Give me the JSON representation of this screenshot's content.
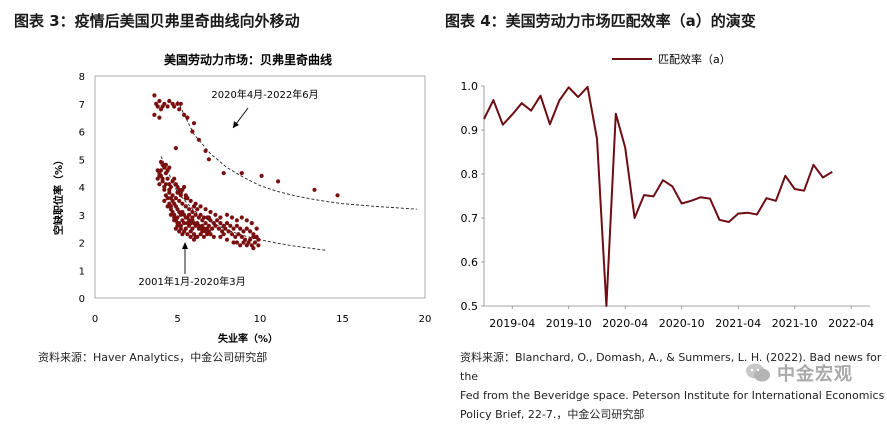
{
  "left": {
    "heading": "图表 3：疫情后美国贝弗里奇曲线向外移动",
    "source": "资料来源：Haver Analytics，中金公司研究部"
  },
  "right": {
    "heading": "图表 4：美国劳动力市场匹配效率（a）的演变",
    "source_lines": [
      "资料来源：Blanchard, O., Domash, A., & Summers, L. H. (2022). Bad news for the",
      "Fed from the Beveridge space. Peterson Institute for International Economics",
      "Policy Brief, 22-7.，中金公司研究部"
    ]
  },
  "watermark": "中金宏观",
  "chart_data": [
    {
      "type": "scatter",
      "title": "美国劳动力市场：贝弗里奇曲线",
      "xlabel": "失业率（%）",
      "ylabel": "空缺职位率（%）",
      "xlim": [
        0,
        20
      ],
      "ylim": [
        0,
        8
      ],
      "xticks": [
        0,
        5,
        10,
        15,
        20
      ],
      "yticks": [
        0,
        1,
        2,
        3,
        4,
        5,
        6,
        7,
        8
      ],
      "grid": false,
      "annotations": [
        "2020年4月-2022年6月",
        "2001年1月-2020年3月"
      ],
      "series": [
        {
          "name": "2001年1月-2020年3月",
          "color": "#7a0f10",
          "points": [
            [
              3.8,
              4.3
            ],
            [
              3.9,
              4.5
            ],
            [
              4.0,
              4.6
            ],
            [
              4.1,
              4.8
            ],
            [
              4.0,
              4.4
            ],
            [
              4.2,
              4.7
            ],
            [
              4.3,
              4.5
            ],
            [
              4.1,
              4.2
            ],
            [
              3.9,
              4.1
            ],
            [
              4.2,
              4.0
            ],
            [
              4.4,
              4.3
            ],
            [
              4.5,
              4.1
            ],
            [
              4.6,
              4.0
            ],
            [
              4.7,
              4.2
            ],
            [
              4.8,
              4.3
            ],
            [
              4.9,
              4.1
            ],
            [
              5.0,
              4.0
            ],
            [
              5.1,
              3.9
            ],
            [
              5.2,
              3.8
            ],
            [
              5.3,
              3.9
            ],
            [
              5.4,
              4.0
            ],
            [
              5.5,
              3.7
            ],
            [
              5.6,
              3.6
            ],
            [
              4.5,
              3.8
            ],
            [
              4.6,
              3.6
            ],
            [
              4.7,
              3.5
            ],
            [
              4.8,
              3.4
            ],
            [
              4.9,
              3.3
            ],
            [
              5.0,
              3.2
            ],
            [
              5.1,
              3.1
            ],
            [
              5.2,
              3.0
            ],
            [
              5.3,
              3.1
            ],
            [
              5.4,
              3.0
            ],
            [
              5.5,
              2.9
            ],
            [
              5.6,
              2.9
            ],
            [
              5.7,
              2.8
            ],
            [
              5.8,
              2.7
            ],
            [
              5.9,
              2.8
            ],
            [
              6.0,
              2.7
            ],
            [
              6.1,
              2.6
            ],
            [
              6.2,
              2.7
            ],
            [
              6.3,
              2.6
            ],
            [
              6.4,
              2.5
            ],
            [
              6.5,
              2.6
            ],
            [
              6.6,
              2.5
            ],
            [
              6.7,
              2.4
            ],
            [
              6.8,
              2.5
            ],
            [
              6.9,
              2.4
            ],
            [
              7.0,
              2.3
            ],
            [
              5.8,
              2.4
            ],
            [
              5.9,
              2.5
            ],
            [
              6.0,
              2.3
            ],
            [
              6.1,
              2.2
            ],
            [
              5.7,
              2.6
            ],
            [
              5.5,
              2.5
            ],
            [
              5.4,
              2.7
            ],
            [
              5.3,
              2.8
            ],
            [
              5.2,
              2.6
            ],
            [
              5.1,
              2.7
            ],
            [
              5.0,
              2.9
            ],
            [
              4.9,
              2.8
            ],
            [
              4.8,
              3.0
            ],
            [
              4.7,
              3.1
            ],
            [
              4.6,
              3.3
            ],
            [
              4.5,
              3.4
            ],
            [
              4.4,
              3.6
            ],
            [
              4.3,
              3.7
            ],
            [
              4.2,
              3.9
            ],
            [
              6.0,
              3.3
            ],
            [
              6.2,
              3.2
            ],
            [
              6.4,
              3.0
            ],
            [
              6.6,
              2.9
            ],
            [
              6.8,
              2.9
            ],
            [
              7.0,
              2.8
            ],
            [
              7.2,
              2.7
            ],
            [
              7.4,
              2.8
            ],
            [
              7.6,
              2.7
            ],
            [
              7.8,
              2.6
            ],
            [
              8.0,
              2.7
            ],
            [
              8.2,
              2.6
            ],
            [
              8.4,
              2.5
            ],
            [
              8.6,
              2.6
            ],
            [
              8.8,
              2.5
            ],
            [
              9.0,
              2.4
            ],
            [
              9.2,
              2.5
            ],
            [
              9.4,
              2.4
            ],
            [
              9.6,
              2.3
            ],
            [
              9.8,
              2.2
            ],
            [
              9.9,
              2.1
            ],
            [
              9.7,
              2.0
            ],
            [
              9.5,
              1.9
            ],
            [
              9.3,
              2.0
            ],
            [
              9.1,
              2.1
            ],
            [
              8.9,
              2.2
            ],
            [
              8.7,
              2.3
            ],
            [
              8.5,
              2.2
            ],
            [
              8.3,
              2.3
            ],
            [
              8.1,
              2.4
            ],
            [
              7.9,
              2.5
            ],
            [
              7.7,
              2.4
            ],
            [
              7.5,
              2.5
            ],
            [
              7.3,
              2.6
            ],
            [
              7.1,
              2.5
            ],
            [
              6.9,
              2.6
            ],
            [
              6.7,
              2.7
            ],
            [
              6.5,
              2.8
            ],
            [
              6.3,
              2.9
            ],
            [
              6.1,
              3.0
            ],
            [
              5.9,
              3.1
            ],
            [
              5.7,
              3.2
            ],
            [
              5.5,
              3.3
            ],
            [
              5.3,
              3.4
            ],
            [
              5.1,
              3.5
            ],
            [
              4.9,
              3.6
            ],
            [
              4.7,
              3.7
            ],
            [
              4.5,
              3.9
            ],
            [
              4.3,
              4.1
            ],
            [
              4.1,
              4.3
            ],
            [
              3.9,
              4.4
            ],
            [
              4.6,
              3.2
            ],
            [
              4.8,
              2.9
            ],
            [
              5.0,
              2.7
            ],
            [
              5.2,
              2.5
            ],
            [
              5.4,
              2.4
            ],
            [
              5.6,
              2.3
            ],
            [
              5.8,
              2.2
            ],
            [
              6.0,
              2.1
            ],
            [
              6.2,
              2.2
            ],
            [
              6.4,
              2.3
            ],
            [
              6.6,
              2.2
            ],
            [
              8.0,
              3.0
            ],
            [
              8.3,
              2.9
            ],
            [
              8.6,
              2.8
            ],
            [
              8.9,
              2.9
            ],
            [
              9.2,
              2.8
            ],
            [
              9.5,
              2.7
            ],
            [
              9.8,
              2.5
            ],
            [
              9.6,
              2.2
            ],
            [
              9.4,
              2.1
            ],
            [
              9.0,
              2.0
            ],
            [
              7.3,
              3.0
            ],
            [
              7.6,
              2.9
            ],
            [
              7.0,
              3.1
            ],
            [
              6.7,
              3.2
            ],
            [
              6.4,
              3.3
            ],
            [
              6.1,
              3.4
            ],
            [
              5.8,
              3.5
            ],
            [
              5.5,
              3.6
            ],
            [
              5.2,
              3.7
            ],
            [
              5.0,
              3.8
            ],
            [
              4.4,
              4.6
            ],
            [
              4.3,
              4.8
            ],
            [
              4.5,
              4.7
            ],
            [
              4.0,
              4.9
            ],
            [
              3.8,
              4.6
            ],
            [
              5.7,
              3.0
            ],
            [
              5.9,
              2.9
            ],
            [
              6.3,
              2.5
            ],
            [
              6.5,
              2.4
            ],
            [
              6.8,
              2.3
            ],
            [
              7.2,
              2.2
            ],
            [
              7.6,
              2.2
            ],
            [
              8.0,
              2.1
            ],
            [
              8.4,
              2.0
            ],
            [
              8.8,
              1.9
            ],
            [
              9.2,
              1.9
            ],
            [
              9.6,
              1.8
            ],
            [
              9.9,
              1.9
            ],
            [
              8.6,
              2.0
            ],
            [
              7.8,
              2.3
            ],
            [
              4.2,
              3.5
            ],
            [
              4.4,
              3.3
            ],
            [
              4.6,
              3.0
            ],
            [
              4.8,
              2.8
            ],
            [
              5.0,
              2.6
            ],
            [
              5.3,
              2.3
            ],
            [
              5.1,
              2.4
            ],
            [
              4.9,
              2.5
            ],
            [
              5.6,
              2.7
            ],
            [
              6.9,
              2.9
            ]
          ]
        },
        {
          "name": "2020年4月-2022年6月",
          "color": "#7a0f10",
          "points": [
            [
              3.6,
              7.3
            ],
            [
              3.7,
              7.0
            ],
            [
              3.8,
              6.9
            ],
            [
              3.6,
              6.6
            ],
            [
              3.9,
              7.1
            ],
            [
              4.0,
              6.8
            ],
            [
              4.2,
              7.0
            ],
            [
              4.5,
              7.1
            ],
            [
              4.8,
              6.9
            ],
            [
              5.1,
              6.8
            ],
            [
              5.4,
              6.6
            ],
            [
              5.0,
              7.0
            ],
            [
              5.9,
              6.0
            ],
            [
              6.3,
              5.7
            ],
            [
              6.7,
              5.3
            ],
            [
              6.0,
              6.3
            ],
            [
              6.9,
              5.0
            ],
            [
              7.8,
              4.5
            ],
            [
              8.9,
              4.5
            ],
            [
              10.1,
              4.4
            ],
            [
              11.1,
              4.2
            ],
            [
              13.3,
              3.9
            ],
            [
              14.7,
              3.7
            ],
            [
              3.9,
              6.5
            ],
            [
              4.1,
              6.9
            ],
            [
              4.7,
              7.0
            ],
            [
              5.2,
              7.0
            ],
            [
              5.6,
              6.5
            ],
            [
              4.4,
              6.9
            ],
            [
              4.9,
              5.4
            ]
          ]
        }
      ],
      "fit_curves": [
        {
          "label": "2020年4月-2022年6月",
          "style": "dashed",
          "x": [
            5.0,
            6,
            7,
            8,
            9,
            10,
            11,
            12,
            13,
            14,
            15,
            16,
            17,
            18,
            19,
            19.5
          ],
          "y": [
            7.1,
            5.9,
            5.2,
            4.7,
            4.35,
            4.05,
            3.85,
            3.7,
            3.58,
            3.48,
            3.4,
            3.35,
            3.3,
            3.26,
            3.22,
            3.2
          ]
        },
        {
          "label": "2001年1月-2020年3月",
          "style": "dashed",
          "x": [
            4.0,
            5,
            6,
            7,
            8,
            9,
            10,
            11,
            12,
            13,
            14
          ],
          "y": [
            5.1,
            3.8,
            3.15,
            2.75,
            2.45,
            2.25,
            2.1,
            1.98,
            1.88,
            1.8,
            1.72
          ]
        }
      ]
    },
    {
      "type": "line",
      "legend": [
        "匹配效率（a）"
      ],
      "legend_position": "top",
      "xlim": [
        "2019-01",
        "2022-06"
      ],
      "ylim": [
        0.5,
        1.0
      ],
      "xticks": [
        "2019-04",
        "2019-10",
        "2020-04",
        "2020-10",
        "2021-04",
        "2021-10",
        "2022-04"
      ],
      "yticks": [
        0.5,
        0.6,
        0.7,
        0.8,
        0.9,
        1.0
      ],
      "grid": false,
      "color": "#6e0d14",
      "series": [
        {
          "name": "匹配效率（a）",
          "x": [
            "2019-01",
            "2019-02",
            "2019-03",
            "2019-04",
            "2019-05",
            "2019-06",
            "2019-07",
            "2019-08",
            "2019-09",
            "2019-10",
            "2019-11",
            "2019-12",
            "2020-01",
            "2020-02",
            "2020-03",
            "2020-04",
            "2020-05",
            "2020-06",
            "2020-07",
            "2020-08",
            "2020-09",
            "2020-10",
            "2020-11",
            "2020-12",
            "2021-01",
            "2021-02",
            "2021-03",
            "2021-04",
            "2021-05",
            "2021-06",
            "2021-07",
            "2021-08",
            "2021-09",
            "2021-10",
            "2021-11",
            "2021-12",
            "2022-01",
            "2022-02",
            "2022-03",
            "2022-04",
            "2022-05"
          ],
          "values": [
            0.925,
            0.968,
            0.912,
            0.935,
            0.961,
            0.944,
            0.978,
            0.913,
            0.967,
            0.997,
            0.975,
            0.998,
            0.88,
            0.5,
            0.937,
            0.86,
            0.7,
            0.752,
            0.749,
            0.786,
            0.772,
            0.733,
            0.739,
            0.747,
            0.744,
            0.696,
            0.691,
            0.71,
            0.712,
            0.708,
            0.745,
            0.739,
            0.796,
            0.766,
            0.762,
            0.821,
            0.792,
            0.805,
            null,
            null,
            null
          ]
        }
      ]
    }
  ]
}
